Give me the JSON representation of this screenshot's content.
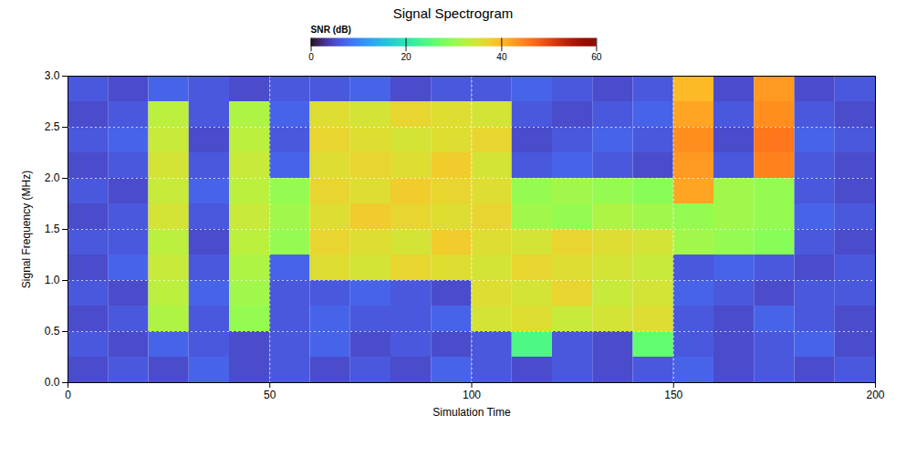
{
  "chart_data": {
    "type": "heatmap",
    "title": "Signal Spectrogram",
    "xlabel": "Simulation Time",
    "ylabel": "Signal Frequency (MHz)",
    "zlabel": "SNR (dB)",
    "x": [
      0,
      10,
      20,
      30,
      40,
      50,
      60,
      70,
      80,
      90,
      100,
      110,
      120,
      130,
      140,
      150,
      160,
      170,
      180,
      190,
      200
    ],
    "y": [
      0,
      0.25,
      0.5,
      0.75,
      1,
      1.25,
      1.5,
      1.75,
      2,
      2.25,
      2.5,
      2.75,
      3
    ],
    "z": [
      [
        5,
        6,
        5,
        7,
        5,
        6,
        5,
        6,
        5,
        7,
        6,
        5,
        6,
        5,
        6,
        7,
        5,
        6,
        5,
        6
      ],
      [
        6,
        5,
        7,
        6,
        5,
        6,
        7,
        5,
        6,
        5,
        6,
        24,
        6,
        5,
        26,
        6,
        5,
        6,
        7,
        5
      ],
      [
        5,
        6,
        32,
        6,
        30,
        6,
        7,
        6,
        6,
        7,
        35,
        36,
        34,
        35,
        36,
        6,
        5,
        7,
        6,
        5
      ],
      [
        6,
        5,
        33,
        7,
        31,
        6,
        6,
        7,
        6,
        5,
        36,
        35,
        37,
        34,
        35,
        7,
        6,
        5,
        6,
        6
      ],
      [
        5,
        7,
        34,
        6,
        32,
        7,
        36,
        35,
        37,
        36,
        35,
        37,
        36,
        35,
        34,
        6,
        7,
        6,
        5,
        6
      ],
      [
        6,
        6,
        33,
        5,
        33,
        30,
        37,
        36,
        35,
        38,
        36,
        35,
        37,
        36,
        35,
        31,
        30,
        29,
        6,
        5
      ],
      [
        5,
        6,
        35,
        6,
        34,
        31,
        36,
        38,
        37,
        36,
        37,
        31,
        30,
        32,
        31,
        30,
        31,
        30,
        7,
        6
      ],
      [
        6,
        5,
        34,
        7,
        33,
        30,
        37,
        36,
        38,
        37,
        36,
        30,
        31,
        30,
        29,
        42,
        31,
        30,
        6,
        5
      ],
      [
        5,
        6,
        35,
        6,
        34,
        7,
        36,
        37,
        36,
        38,
        35,
        6,
        7,
        6,
        5,
        43,
        6,
        45,
        6,
        5
      ],
      [
        6,
        7,
        34,
        5,
        33,
        6,
        37,
        36,
        35,
        36,
        37,
        5,
        6,
        7,
        6,
        44,
        5,
        46,
        7,
        6
      ],
      [
        5,
        6,
        33,
        6,
        32,
        7,
        36,
        35,
        37,
        36,
        35,
        6,
        5,
        6,
        7,
        42,
        6,
        44,
        6,
        5
      ],
      [
        6,
        5,
        7,
        6,
        5,
        6,
        6,
        7,
        5,
        6,
        6,
        7,
        6,
        5,
        6,
        40,
        5,
        43,
        5,
        6
      ]
    ],
    "xlim": [
      0,
      200
    ],
    "xticks": [
      0,
      50,
      100,
      150,
      200
    ],
    "ylim": [
      0,
      3
    ],
    "yticks": [
      0,
      0.5,
      1,
      1.5,
      2,
      2.5,
      3
    ],
    "zlim": [
      0,
      60
    ],
    "zticks": [
      0,
      20,
      40,
      60
    ],
    "grid": true
  }
}
